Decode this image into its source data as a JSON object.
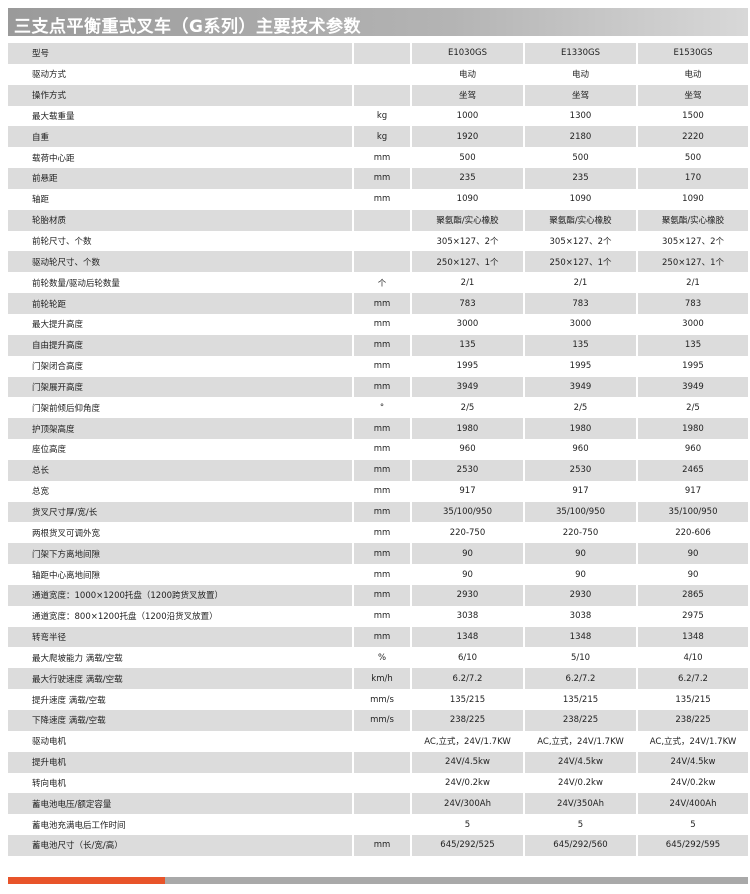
{
  "title": "三支点平衡重式叉车（G系列）主要技术参数",
  "table": {
    "header": {
      "label": "型号",
      "models": [
        "E1030GS",
        "E1330GS",
        "E1530GS"
      ]
    },
    "rows": [
      {
        "label": "驱动方式",
        "values": [
          "电动",
          "电动",
          "电动"
        ]
      },
      {
        "label": "操作方式",
        "values": [
          "坐驾",
          "坐驾",
          "坐驾"
        ]
      },
      {
        "label": "最大载重量",
        "unit": "kg",
        "values": [
          "1000",
          "1300",
          "1500"
        ]
      },
      {
        "label": "自重",
        "unit": "kg",
        "values": [
          "1920",
          "2180",
          "2220"
        ]
      },
      {
        "label": "载荷中心距",
        "unit": "mm",
        "values": [
          "500",
          "500",
          "500"
        ]
      },
      {
        "label": "前悬距",
        "unit": "mm",
        "values": [
          "235",
          "235",
          "170"
        ]
      },
      {
        "label": "轴距",
        "unit": "mm",
        "values": [
          "1090",
          "1090",
          "1090"
        ]
      },
      {
        "label": "轮胎材质",
        "values": [
          "聚氨酯/实心橡胶",
          "聚氨酯/实心橡胶",
          "聚氨酯/实心橡胶"
        ]
      },
      {
        "label": "前轮尺寸、个数",
        "values": [
          "305×127、2个",
          "305×127、2个",
          "305×127、2个"
        ]
      },
      {
        "label": "驱动轮尺寸、个数",
        "values": [
          "250×127、1个",
          "250×127、1个",
          "250×127、1个"
        ]
      },
      {
        "label": "前轮数量/驱动后轮数量",
        "unit": "个",
        "values": [
          "2/1",
          "2/1",
          "2/1"
        ]
      },
      {
        "label": "前轮轮距",
        "unit": "mm",
        "values": [
          "783",
          "783",
          "783"
        ]
      },
      {
        "label": "最大提升高度",
        "unit": "mm",
        "values": [
          "3000",
          "3000",
          "3000"
        ]
      },
      {
        "label": "自由提升高度",
        "unit": "mm",
        "values": [
          "135",
          "135",
          "135"
        ]
      },
      {
        "label": "门架闭合高度",
        "unit": "mm",
        "values": [
          "1995",
          "1995",
          "1995"
        ]
      },
      {
        "label": "门架展开高度",
        "unit": "mm",
        "values": [
          "3949",
          "3949",
          "3949"
        ]
      },
      {
        "label": "门架前倾后仰角度",
        "unit": "°",
        "values": [
          "2/5",
          "2/5",
          "2/5"
        ]
      },
      {
        "label": "护顶架高度",
        "unit": "mm",
        "values": [
          "1980",
          "1980",
          "1980"
        ]
      },
      {
        "label": "座位高度",
        "unit": "mm",
        "values": [
          "960",
          "960",
          "960"
        ]
      },
      {
        "label": "总长",
        "unit": "mm",
        "values": [
          "2530",
          "2530",
          "2465"
        ]
      },
      {
        "label": "总宽",
        "unit": "mm",
        "values": [
          "917",
          "917",
          "917"
        ]
      },
      {
        "label": "货叉尺寸厚/宽/长",
        "unit": "mm",
        "values": [
          "35/100/950",
          "35/100/950",
          "35/100/950"
        ]
      },
      {
        "label": "两根货叉可调外宽",
        "unit": "mm",
        "values": [
          "220-750",
          "220-750",
          "220-606"
        ]
      },
      {
        "label": "门架下方离地间隙",
        "unit": "mm",
        "values": [
          "90",
          "90",
          "90"
        ]
      },
      {
        "label": "轴距中心离地间隙",
        "unit": "mm",
        "values": [
          "90",
          "90",
          "90"
        ]
      },
      {
        "label": "通道宽度：1000×1200托盘（1200跨货叉放置）",
        "unit": "mm",
        "values": [
          "2930",
          "2930",
          "2865"
        ]
      },
      {
        "label": "通道宽度：800×1200托盘（1200沿货叉放置）",
        "unit": "mm",
        "values": [
          "3038",
          "3038",
          "2975"
        ]
      },
      {
        "label": "转弯半径",
        "unit": "mm",
        "values": [
          "1348",
          "1348",
          "1348"
        ]
      },
      {
        "label": "最大爬坡能力  满载/空载",
        "unit": "%",
        "values": [
          "6/10",
          "5/10",
          "4/10"
        ]
      },
      {
        "label": "最大行驶速度  满载/空载",
        "unit": "km/h",
        "values": [
          "6.2/7.2",
          "6.2/7.2",
          "6.2/7.2"
        ]
      },
      {
        "label": "提升速度      满载/空载",
        "unit": "mm/s",
        "values": [
          "135/215",
          "135/215",
          "135/215"
        ]
      },
      {
        "label": "下降速度      满载/空载",
        "unit": "mm/s",
        "values": [
          "238/225",
          "238/225",
          "238/225"
        ]
      },
      {
        "label": "驱动电机",
        "values": [
          "AC,立式，24V/1.7KW",
          "AC,立式，24V/1.7KW",
          "AC,立式，24V/1.7KW"
        ]
      },
      {
        "label": "提升电机",
        "values": [
          "24V/4.5kw",
          "24V/4.5kw",
          "24V/4.5kw"
        ]
      },
      {
        "label": "转向电机",
        "values": [
          "24V/0.2kw",
          "24V/0.2kw",
          "24V/0.2kw"
        ]
      },
      {
        "label": "蓄电池电压/额定容量",
        "values": [
          "24V/300Ah",
          "24V/350Ah",
          "24V/400Ah"
        ]
      },
      {
        "label": "蓄电池充满电后工作时间",
        "values": [
          "5",
          "5",
          "5"
        ]
      },
      {
        "label": "蓄电池尺寸（长/宽/高）",
        "unit": "mm",
        "values": [
          "645/292/525",
          "645/292/560",
          "645/292/595"
        ]
      }
    ]
  }
}
